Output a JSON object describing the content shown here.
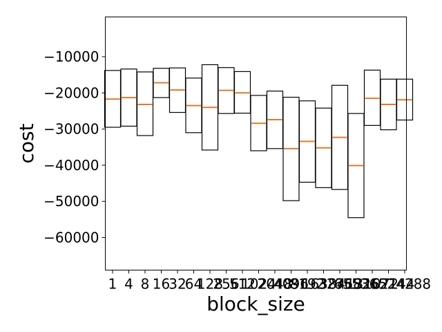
{
  "chart_data": {
    "type": "box",
    "xlabel": "block_size",
    "ylabel": "cost",
    "ylim": [
      -69000,
      1000
    ],
    "y_ticks": [
      -60000,
      -50000,
      -40000,
      -30000,
      -20000,
      -10000
    ],
    "y_tick_labels": [
      "−60000",
      "−50000",
      "−40000",
      "−30000",
      "−20000",
      "−10000"
    ],
    "categories": [
      "1",
      "4",
      "8",
      "16",
      "32",
      "64",
      "128",
      "256",
      "512",
      "1024",
      "2048",
      "4096",
      "8192",
      "16384",
      "32768",
      "65536",
      "131072",
      "262144",
      "524288"
    ],
    "boxes": [
      {
        "q1": -29500,
        "q3": -13800,
        "median": -21700
      },
      {
        "q1": -29200,
        "q3": -13400,
        "median": -21300
      },
      {
        "q1": -31800,
        "q3": -14200,
        "median": -23200
      },
      {
        "q1": -21300,
        "q3": -13200,
        "median": -17200
      },
      {
        "q1": -25400,
        "q3": -13100,
        "median": -19200
      },
      {
        "q1": -31000,
        "q3": -15900,
        "median": -23500
      },
      {
        "q1": -35800,
        "q3": -12200,
        "median": -24000
      },
      {
        "q1": -25700,
        "q3": -13000,
        "median": -19300
      },
      {
        "q1": -25600,
        "q3": -14100,
        "median": -20000
      },
      {
        "q1": -36000,
        "q3": -20700,
        "median": -28400
      },
      {
        "q1": -35400,
        "q3": -19500,
        "median": -27400
      },
      {
        "q1": -49800,
        "q3": -21200,
        "median": -35400
      },
      {
        "q1": -44700,
        "q3": -22200,
        "median": -33400
      },
      {
        "q1": -46200,
        "q3": -24200,
        "median": -35200
      },
      {
        "q1": -46700,
        "q3": -17900,
        "median": -32300
      },
      {
        "q1": -54500,
        "q3": -25700,
        "median": -40100
      },
      {
        "q1": -29000,
        "q3": -13700,
        "median": -21500
      },
      {
        "q1": -30200,
        "q3": -16200,
        "median": -23200
      },
      {
        "q1": -27500,
        "q3": -16200,
        "median": -21900
      }
    ],
    "box_edge_color": "#000000",
    "median_color": "#e07a2e",
    "grid": false,
    "legend": "none"
  }
}
